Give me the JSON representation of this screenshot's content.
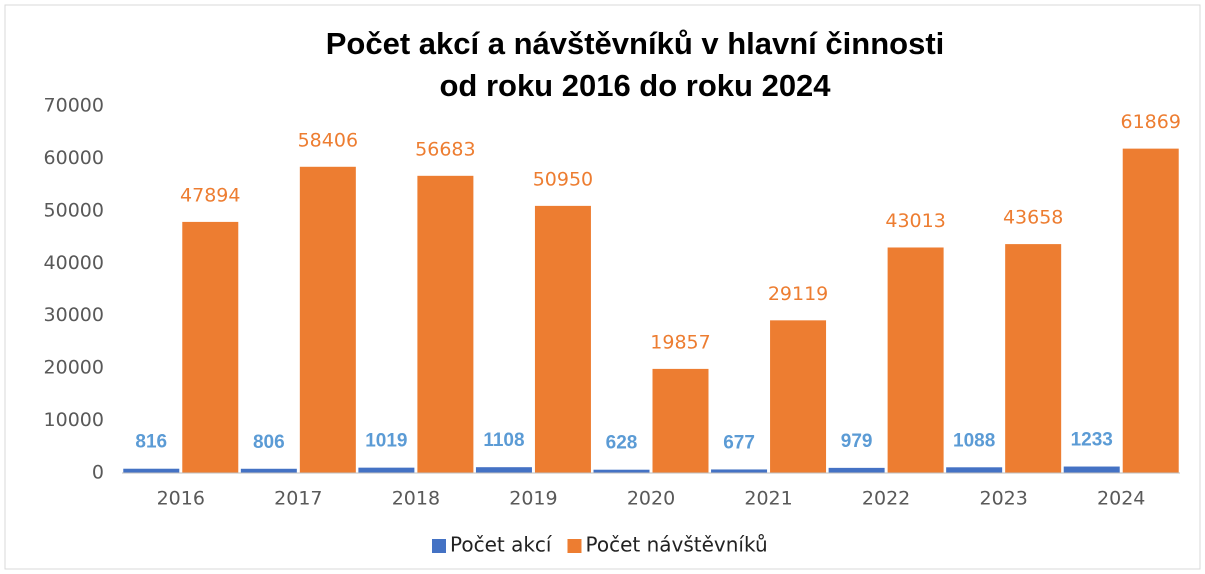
{
  "chart_data": {
    "type": "bar",
    "title": [
      "Počet akcí a návštěvníků v hlavní činnosti",
      "od roku 2016 do roku 2024"
    ],
    "categories": [
      "2016",
      "2017",
      "2018",
      "2019",
      "2020",
      "2021",
      "2022",
      "2023",
      "2024"
    ],
    "series": [
      {
        "name": "Počet akcí",
        "color": "#4472c4",
        "label_color": "#5b9bd5",
        "values": [
          816,
          806,
          1019,
          1108,
          628,
          677,
          979,
          1088,
          1233
        ]
      },
      {
        "name": "Počet návštěvníků",
        "color": "#ed7d31",
        "label_color": "#ed7d31",
        "values": [
          47894,
          58406,
          56683,
          50950,
          19857,
          29119,
          43013,
          43658,
          61869
        ]
      }
    ],
    "ylim": [
      0,
      70000
    ],
    "yticks": [
      0,
      10000,
      20000,
      30000,
      40000,
      50000,
      60000,
      70000
    ],
    "grid": false,
    "legend": "bottom"
  }
}
